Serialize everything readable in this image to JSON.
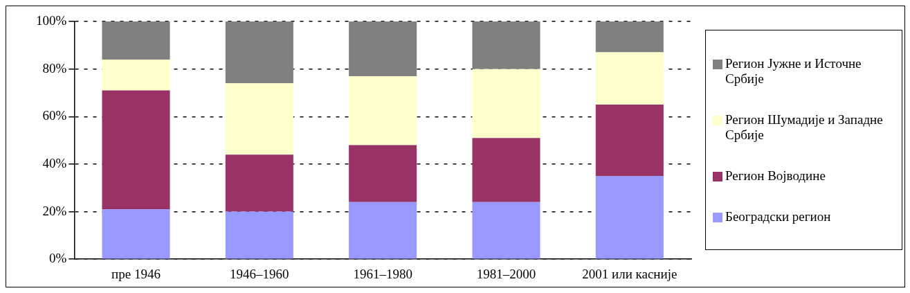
{
  "chart_data": {
    "type": "bar",
    "stacked": true,
    "categories": [
      "пре 1946",
      "1946–1960",
      "1961–1980",
      "1981–2000",
      "2001 или касније"
    ],
    "series": [
      {
        "name": "Београдски регион",
        "color": "#9999ff",
        "values": [
          21,
          20,
          24,
          24,
          35
        ]
      },
      {
        "name": "Регион Војводине",
        "color": "#993366",
        "values": [
          50,
          24,
          24,
          27,
          30
        ]
      },
      {
        "name": "Регион Шумадије и Западне Србије",
        "color": "#ffffcc",
        "values": [
          13,
          30,
          29,
          29,
          22
        ]
      },
      {
        "name": "Регион Јужне и Источне Србије",
        "color": "#808080",
        "values": [
          16,
          26,
          23,
          20,
          13
        ]
      }
    ],
    "ylim": [
      0,
      100
    ],
    "yticks": [
      {
        "value": 0,
        "label": "0%"
      },
      {
        "value": 20,
        "label": "20%"
      },
      {
        "value": 40,
        "label": "40%"
      },
      {
        "value": 60,
        "label": "60%"
      },
      {
        "value": 80,
        "label": "80%"
      },
      {
        "value": 100,
        "label": "100%"
      }
    ],
    "grid": "y",
    "legend": "right"
  }
}
